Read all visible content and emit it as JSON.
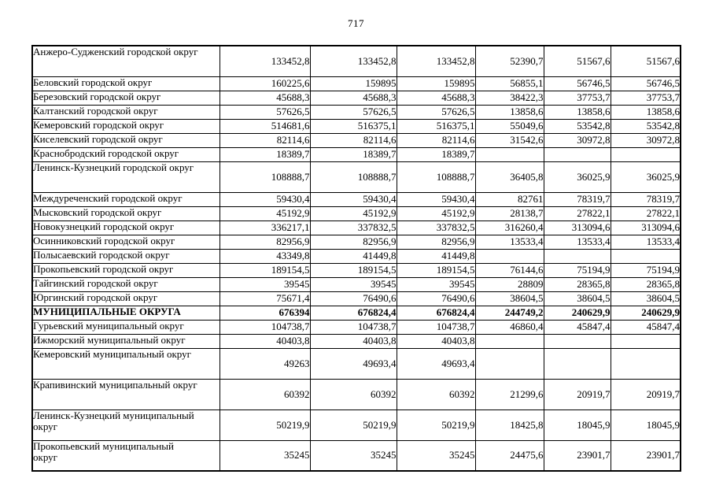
{
  "page_number": "717",
  "colors": {
    "background": "#ffffff",
    "text": "#000000",
    "border": "#000000"
  },
  "table": {
    "rows": [
      {
        "name": "Анжеро-Судженский городской округ",
        "values": [
          "133452,8",
          "133452,8",
          "133452,8",
          "52390,7",
          "51567,6",
          "51567,6"
        ],
        "tall": true,
        "bold": false
      },
      {
        "name": "Беловский городской округ",
        "values": [
          "160225,6",
          "159895",
          "159895",
          "56855,1",
          "56746,5",
          "56746,5"
        ],
        "tall": false,
        "bold": false
      },
      {
        "name": "Березовский городской округ",
        "values": [
          "45688,3",
          "45688,3",
          "45688,3",
          "38422,3",
          "37753,7",
          "37753,7"
        ],
        "tall": false,
        "bold": false
      },
      {
        "name": "Калтанский городской округ",
        "values": [
          "57626,5",
          "57626,5",
          "57626,5",
          "13858,6",
          "13858,6",
          "13858,6"
        ],
        "tall": false,
        "bold": false
      },
      {
        "name": "Кемеровский городской округ",
        "values": [
          "514681,6",
          "516375,1",
          "516375,1",
          "55049,6",
          "53542,8",
          "53542,8"
        ],
        "tall": false,
        "bold": false
      },
      {
        "name": "Киселевский городской округ",
        "values": [
          "82114,6",
          "82114,6",
          "82114,6",
          "31542,6",
          "30972,8",
          "30972,8"
        ],
        "tall": false,
        "bold": false
      },
      {
        "name": "Краснобродский городской округ",
        "values": [
          "18389,7",
          "18389,7",
          "18389,7",
          "",
          "",
          ""
        ],
        "tall": false,
        "bold": false
      },
      {
        "name": "Ленинск-Кузнецкий городской округ",
        "values": [
          "108888,7",
          "108888,7",
          "108888,7",
          "36405,8",
          "36025,9",
          "36025,9"
        ],
        "tall": true,
        "bold": false
      },
      {
        "name": "Междуреченский городской округ",
        "values": [
          "59430,4",
          "59430,4",
          "59430,4",
          "82761",
          "78319,7",
          "78319,7"
        ],
        "tall": false,
        "bold": false
      },
      {
        "name": "Мысковский городской округ",
        "values": [
          "45192,9",
          "45192,9",
          "45192,9",
          "28138,7",
          "27822,1",
          "27822,1"
        ],
        "tall": false,
        "bold": false
      },
      {
        "name": "Новокузнецкий городской округ",
        "values": [
          "336217,1",
          "337832,5",
          "337832,5",
          "316260,4",
          "313094,6",
          "313094,6"
        ],
        "tall": false,
        "bold": false
      },
      {
        "name": "Осинниковский городской округ",
        "values": [
          "82956,9",
          "82956,9",
          "82956,9",
          "13533,4",
          "13533,4",
          "13533,4"
        ],
        "tall": false,
        "bold": false
      },
      {
        "name": "Полысаевский городской округ",
        "values": [
          "43349,8",
          "41449,8",
          "41449,8",
          "",
          "",
          ""
        ],
        "tall": false,
        "bold": false
      },
      {
        "name": "Прокопьевский городской округ",
        "values": [
          "189154,5",
          "189154,5",
          "189154,5",
          "76144,6",
          "75194,9",
          "75194,9"
        ],
        "tall": false,
        "bold": false
      },
      {
        "name": "Тайгинский городской округ",
        "values": [
          "39545",
          "39545",
          "39545",
          "28809",
          "28365,8",
          "28365,8"
        ],
        "tall": false,
        "bold": false
      },
      {
        "name": "Юргинский городской округ",
        "values": [
          "75671,4",
          "76490,6",
          "76490,6",
          "38604,5",
          "38604,5",
          "38604,5"
        ],
        "tall": false,
        "bold": false
      },
      {
        "name": "МУНИЦИПАЛЬНЫЕ ОКРУГА",
        "values": [
          "676394",
          "676824,4",
          "676824,4",
          "244749,2",
          "240629,9",
          "240629,9"
        ],
        "tall": false,
        "bold": true
      },
      {
        "name": "Гурьевский муниципальный округ",
        "values": [
          "104738,7",
          "104738,7",
          "104738,7",
          "46860,4",
          "45847,4",
          "45847,4"
        ],
        "tall": false,
        "bold": false
      },
      {
        "name": "Ижморский муниципальный округ",
        "values": [
          "40403,8",
          "40403,8",
          "40403,8",
          "",
          "",
          ""
        ],
        "tall": false,
        "bold": false
      },
      {
        "name": "Кемеровский муниципальный округ",
        "values": [
          "49263",
          "49693,4",
          "49693,4",
          "",
          "",
          ""
        ],
        "tall": true,
        "bold": false
      },
      {
        "name": "Крапивинский муниципальный округ",
        "values": [
          "60392",
          "60392",
          "60392",
          "21299,6",
          "20919,7",
          "20919,7"
        ],
        "tall": true,
        "bold": false
      },
      {
        "name": "Ленинск-Кузнецкий муниципальный\nокруг",
        "values": [
          "50219,9",
          "50219,9",
          "50219,9",
          "18425,8",
          "18045,9",
          "18045,9"
        ],
        "tall": true,
        "bold": false
      },
      {
        "name": "Прокопьевский муниципальный\nокруг",
        "values": [
          "35245",
          "35245",
          "35245",
          "24475,6",
          "23901,7",
          "23901,7"
        ],
        "tall": true,
        "bold": false
      }
    ]
  }
}
